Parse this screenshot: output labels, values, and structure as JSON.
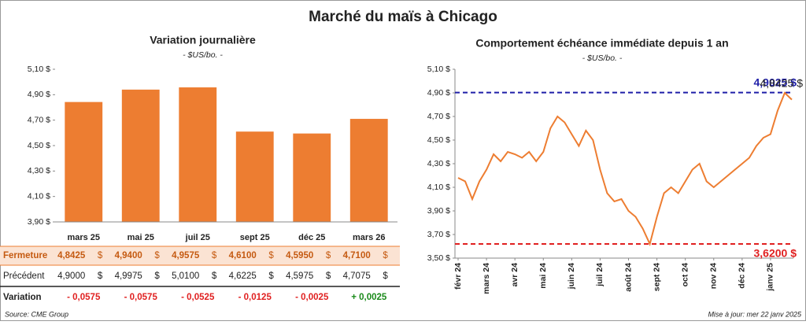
{
  "title": "Marché du maïs à Chicago",
  "chart_data": [
    {
      "type": "bar",
      "title": "Variation journalière",
      "subtitle": "- $US/bo. -",
      "categories": [
        "mars 25",
        "mai 25",
        "juil 25",
        "sept 25",
        "déc 25",
        "mars 26"
      ],
      "values": [
        4.8425,
        4.94,
        4.9575,
        4.61,
        4.595,
        4.71
      ],
      "color": "#ed7d31",
      "ylim": [
        3.9,
        5.1
      ],
      "yticks": [
        {
          "value": 3.9,
          "label": "3,90 $"
        },
        {
          "value": 4.1,
          "label": "4,10 $"
        },
        {
          "value": 4.3,
          "label": "4,30 $"
        },
        {
          "value": 4.5,
          "label": "4,50 $"
        },
        {
          "value": 4.7,
          "label": "4,70 $"
        },
        {
          "value": 4.9,
          "label": "4,90 $"
        },
        {
          "value": 5.1,
          "label": "5,10 $"
        }
      ]
    },
    {
      "type": "line",
      "title": "Comportement échéance immédiate depuis 1 an",
      "subtitle": "- $US/bo. -",
      "categories": [
        "févr 24",
        null,
        null,
        null,
        "mars 24",
        null,
        null,
        null,
        "avr 24",
        null,
        null,
        null,
        "mai 24",
        null,
        null,
        null,
        "juin 24",
        null,
        null,
        null,
        "juil 24",
        null,
        null,
        null,
        "août 24",
        null,
        null,
        null,
        "sept 24",
        null,
        null,
        null,
        "oct 24",
        null,
        null,
        null,
        "nov 24",
        null,
        null,
        null,
        "déc 24",
        null,
        null,
        null,
        "janv 25",
        null,
        null,
        null
      ],
      "values": [
        4.18,
        4.15,
        4.0,
        4.15,
        4.25,
        4.38,
        4.32,
        4.4,
        4.38,
        4.35,
        4.4,
        4.32,
        4.4,
        4.6,
        4.7,
        4.65,
        4.55,
        4.45,
        4.58,
        4.5,
        4.25,
        4.05,
        3.98,
        4.0,
        3.9,
        3.85,
        3.75,
        3.62,
        3.85,
        4.05,
        4.1,
        4.05,
        4.15,
        4.25,
        4.3,
        4.15,
        4.1,
        4.15,
        4.2,
        4.25,
        4.3,
        4.35,
        4.45,
        4.52,
        4.55,
        4.75,
        4.9,
        4.8425
      ],
      "color": "#ed7d31",
      "end_label": "4,8425 $",
      "ylim": [
        3.5,
        5.1
      ],
      "yticks": [
        {
          "value": 3.5,
          "label": "3,50 $"
        },
        {
          "value": 3.7,
          "label": "3,70 $"
        },
        {
          "value": 3.9,
          "label": "3,90 $"
        },
        {
          "value": 4.1,
          "label": "4,10 $"
        },
        {
          "value": 4.3,
          "label": "4,30 $"
        },
        {
          "value": 4.5,
          "label": "4,50 $"
        },
        {
          "value": 4.7,
          "label": "4,70 $"
        },
        {
          "value": 4.9,
          "label": "4,90 $"
        },
        {
          "value": 5.1,
          "label": "5,10 $"
        }
      ],
      "ref_lines": [
        {
          "value": 4.9025,
          "label": "4,9025 $",
          "color": "#1f1fa8"
        },
        {
          "value": 3.62,
          "label": "3,6200 $",
          "color": "#e02020"
        }
      ]
    }
  ],
  "table": {
    "unit": "$",
    "rows": [
      {
        "label": "Fermeture",
        "cells": [
          "4,8425",
          "4,9400",
          "4,9575",
          "4,6100",
          "4,5950",
          "4,7100"
        ],
        "unit": true
      },
      {
        "label": "Précédent",
        "cells": [
          "4,9000",
          "4,9975",
          "5,0100",
          "4,6225",
          "4,5975",
          "4,7075"
        ],
        "unit": true
      },
      {
        "label": "Variation",
        "cells": [
          "- 0,0575",
          "- 0,0575",
          "- 0,0525",
          "- 0,0125",
          "- 0,0025",
          "+ 0,0025"
        ],
        "colors": [
          "#e02020",
          "#e02020",
          "#e02020",
          "#e02020",
          "#e02020",
          "#1a8a1a"
        ],
        "unit": false
      }
    ]
  },
  "source": "Source: CME Group",
  "updated": "Mise à jour: mer 22 janv 2025"
}
